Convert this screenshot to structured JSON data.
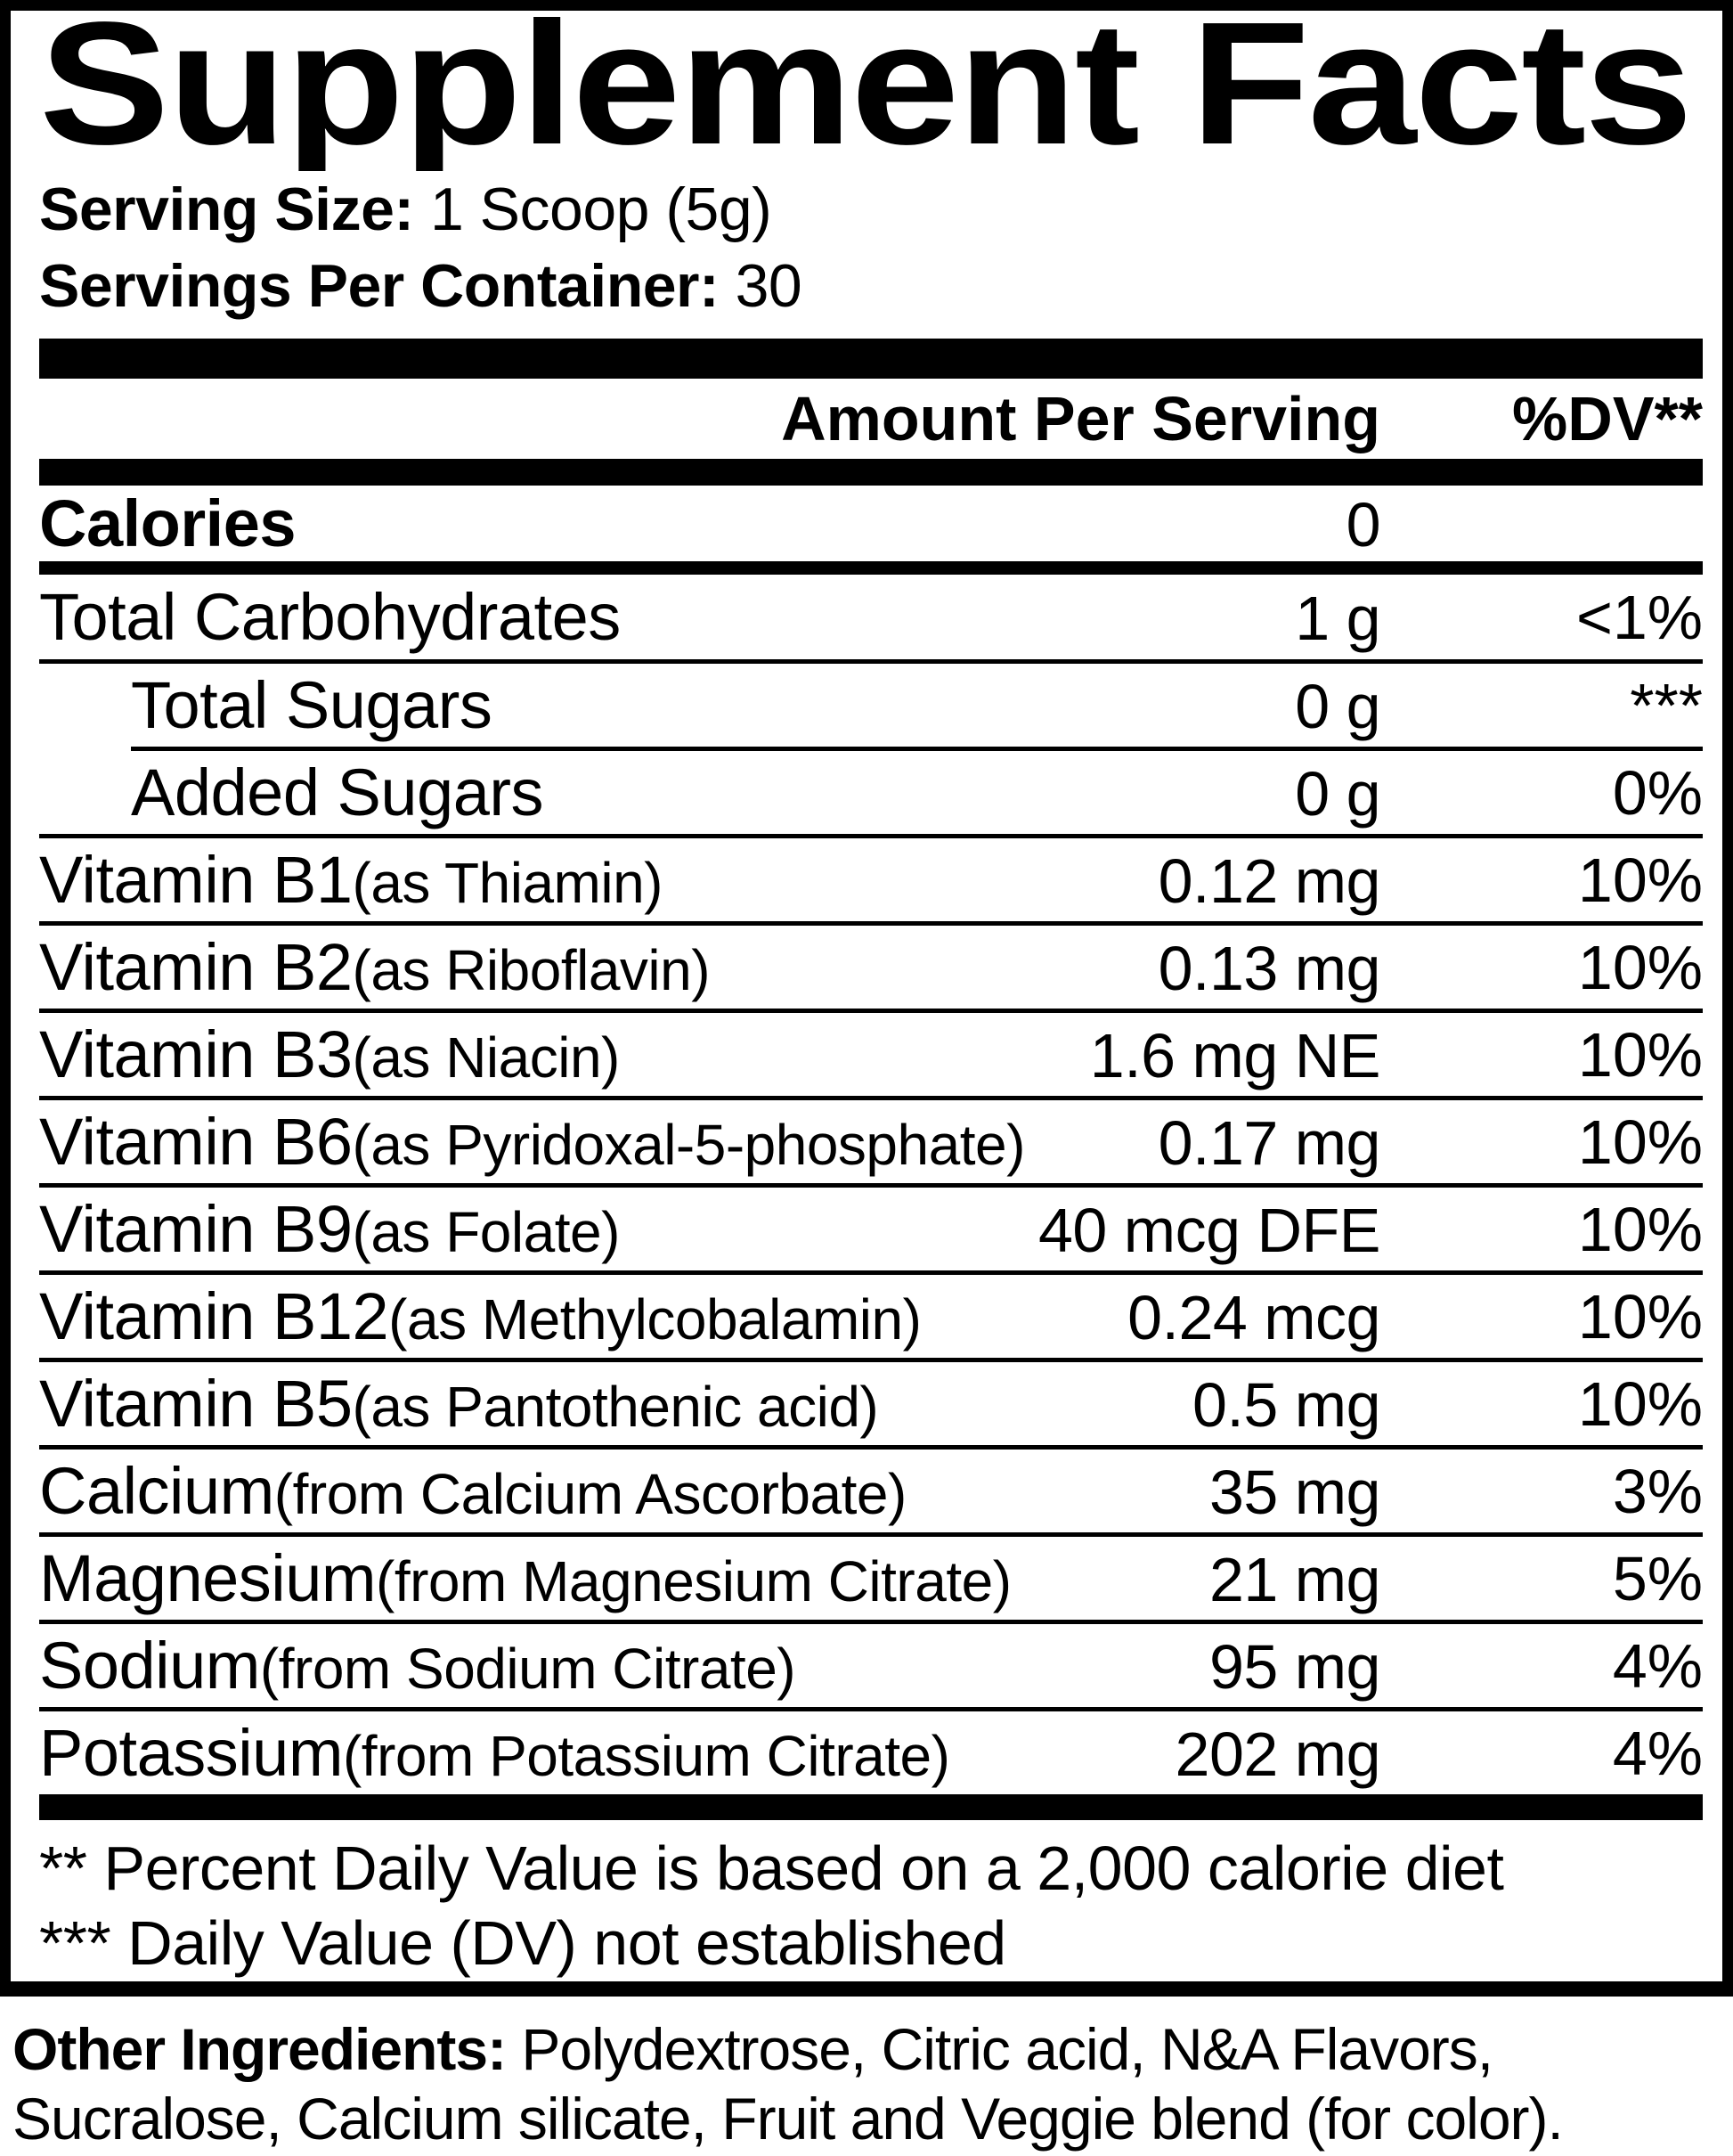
{
  "title": "Supplement Facts",
  "serving": {
    "size_label": "Serving Size:",
    "size_value": "1 Scoop (5g)",
    "count_label": "Servings Per Container:",
    "count_value": "30"
  },
  "table": {
    "amount_header": "Amount Per Serving",
    "dv_header": "%DV**",
    "rows": [
      {
        "name": "Calories",
        "detail": "",
        "amount": "0",
        "dv": "",
        "bold": true,
        "indent": false,
        "indent_sep": false,
        "sep": "none"
      },
      {
        "name": "Total Carbohydrates",
        "detail": "",
        "amount": "1 g",
        "dv": "<1%",
        "bold": false,
        "indent": false,
        "indent_sep": false,
        "sep": "heavy"
      },
      {
        "name": "Total Sugars",
        "detail": "",
        "amount": "0 g",
        "dv": "***",
        "bold": false,
        "indent": true,
        "indent_sep": false,
        "sep": "normal"
      },
      {
        "name": "Added Sugars",
        "detail": "",
        "amount": "0 g",
        "dv": "0%",
        "bold": false,
        "indent": true,
        "indent_sep": true,
        "sep": "normal"
      },
      {
        "name": "Vitamin B1",
        "detail": "(as Thiamin)",
        "amount": "0.12 mg",
        "dv": "10%",
        "bold": false,
        "indent": false,
        "indent_sep": false,
        "sep": "normal"
      },
      {
        "name": "Vitamin B2",
        "detail": "(as Riboflavin)",
        "amount": "0.13 mg",
        "dv": "10%",
        "bold": false,
        "indent": false,
        "indent_sep": false,
        "sep": "normal"
      },
      {
        "name": "Vitamin B3",
        "detail": "(as Niacin)",
        "amount": "1.6 mg NE",
        "dv": "10%",
        "bold": false,
        "indent": false,
        "indent_sep": false,
        "sep": "normal"
      },
      {
        "name": "Vitamin B6",
        "detail": "(as Pyridoxal-5-phosphate)",
        "amount": "0.17 mg",
        "dv": "10%",
        "bold": false,
        "indent": false,
        "indent_sep": false,
        "sep": "normal"
      },
      {
        "name": "Vitamin B9",
        "detail": "(as Folate)",
        "amount": "40 mcg DFE",
        "dv": "10%",
        "bold": false,
        "indent": false,
        "indent_sep": false,
        "sep": "normal"
      },
      {
        "name": "Vitamin B12",
        "detail": "(as Methylcobalamin)",
        "amount": "0.24 mcg",
        "dv": "10%",
        "bold": false,
        "indent": false,
        "indent_sep": false,
        "sep": "normal"
      },
      {
        "name": "Vitamin B5",
        "detail": "(as Pantothenic acid)",
        "amount": "0.5 mg",
        "dv": "10%",
        "bold": false,
        "indent": false,
        "indent_sep": false,
        "sep": "normal"
      },
      {
        "name": "Calcium",
        "detail": "(from Calcium Ascorbate)",
        "amount": "35 mg",
        "dv": "3%",
        "bold": false,
        "indent": false,
        "indent_sep": false,
        "sep": "normal"
      },
      {
        "name": "Magnesium",
        "detail": "(from Magnesium Citrate)",
        "amount": "21 mg",
        "dv": "5%",
        "bold": false,
        "indent": false,
        "indent_sep": false,
        "sep": "normal"
      },
      {
        "name": "Sodium",
        "detail": "(from Sodium Citrate)",
        "amount": "95 mg",
        "dv": "4%",
        "bold": false,
        "indent": false,
        "indent_sep": false,
        "sep": "normal"
      },
      {
        "name": "Potassium",
        "detail": "(from Potassium Citrate)",
        "amount": "202 mg",
        "dv": "4%",
        "bold": false,
        "indent": false,
        "indent_sep": false,
        "sep": "normal"
      }
    ]
  },
  "footnotes": [
    "** Percent Daily Value is based on a 2,000 calorie diet",
    "*** Daily Value (DV) not established"
  ],
  "other_ingredients": {
    "label": "Other Ingredients:",
    "line1": "Polydextrose, Citric acid, N&A Flavors,",
    "line2": "Sucralose, Calcium silicate, Fruit and Veggie blend (for color)."
  },
  "colors": {
    "ink": "#000000",
    "paper": "#ffffff"
  }
}
